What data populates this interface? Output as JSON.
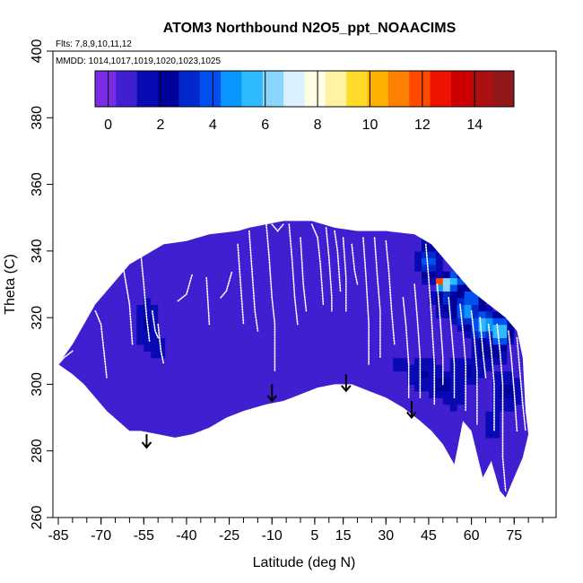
{
  "chart_data": {
    "type": "heatmap",
    "title": "ATOM3 Northbound N2O5_ppt_NOAACIMS",
    "subtitle_flights": "Flts: 7,8,9,10,11,12",
    "subtitle_dates": "MMDD: 1014,1017,1019,1020,1023,1025",
    "xlabel": "Latitude (deg N)",
    "ylabel": "Theta (C)",
    "xlim": [
      -85,
      85
    ],
    "ylim": [
      260,
      400
    ],
    "x_ticks": [
      -85,
      -70,
      -55,
      -40,
      -25,
      -10,
      5,
      15,
      30,
      45,
      60,
      75
    ],
    "x_minor_step": 5,
    "y_ticks": [
      260,
      280,
      300,
      320,
      340,
      360,
      380,
      400
    ],
    "colorbar": {
      "range": [
        -0.5,
        15.5
      ],
      "ticks": [
        0,
        2,
        4,
        6,
        8,
        10,
        12,
        14
      ],
      "colors": [
        "#7b2be6",
        "#3f1fd0",
        "#0a0ab4",
        "#00009a",
        "#0028cc",
        "#0050f0",
        "#0a96ff",
        "#2dbaff",
        "#8ad6ff",
        "#daf0ff",
        "#ffffe6",
        "#fff2a0",
        "#ffdc2a",
        "#ffb000",
        "#ff8000",
        "#ff4a00",
        "#ee1200",
        "#cc0000",
        "#aa1010",
        "#901818"
      ]
    },
    "field_curtain": {
      "description": "interpolated N2O5 (ppt) curtain in latitude-theta space",
      "background_value": 0.3,
      "outline_upper": [
        [
          -85,
          306
        ],
        [
          -80,
          312
        ],
        [
          -76,
          318
        ],
        [
          -72,
          324
        ],
        [
          -66,
          330
        ],
        [
          -60,
          336
        ],
        [
          -56,
          338
        ],
        [
          -52,
          340
        ],
        [
          -48,
          342
        ],
        [
          -40,
          343
        ],
        [
          -32,
          345
        ],
        [
          -22,
          346
        ],
        [
          -18,
          347
        ],
        [
          -12,
          348
        ],
        [
          -6,
          349
        ],
        [
          4,
          349
        ],
        [
          12,
          347
        ],
        [
          20,
          346
        ],
        [
          30,
          346
        ],
        [
          40,
          345
        ],
        [
          46,
          342
        ],
        [
          50,
          338
        ],
        [
          56,
          332
        ],
        [
          60,
          328
        ],
        [
          66,
          324
        ],
        [
          72,
          320
        ],
        [
          76,
          316
        ],
        [
          78,
          308
        ],
        [
          79,
          292
        ],
        [
          80,
          285
        ]
      ],
      "outline_lower": [
        [
          80,
          285
        ],
        [
          78,
          278
        ],
        [
          75,
          272
        ],
        [
          72,
          266
        ],
        [
          70,
          268
        ],
        [
          67,
          277
        ],
        [
          64,
          272
        ],
        [
          60,
          286
        ],
        [
          57,
          289
        ],
        [
          54,
          276
        ],
        [
          50,
          282
        ],
        [
          46,
          286
        ],
        [
          42,
          289
        ],
        [
          36,
          293
        ],
        [
          30,
          296
        ],
        [
          24,
          298
        ],
        [
          18,
          300
        ],
        [
          12,
          300
        ],
        [
          6,
          299
        ],
        [
          0,
          297
        ],
        [
          -6,
          295
        ],
        [
          -12,
          294
        ],
        [
          -20,
          292
        ],
        [
          -26,
          290
        ],
        [
          -32,
          287
        ],
        [
          -38,
          285
        ],
        [
          -44,
          284
        ],
        [
          -50,
          285
        ],
        [
          -56,
          286
        ],
        [
          -60,
          286
        ],
        [
          -64,
          289
        ],
        [
          -68,
          292
        ],
        [
          -72,
          296
        ],
        [
          -76,
          300
        ],
        [
          -80,
          303
        ],
        [
          -85,
          306
        ]
      ],
      "features": [
        {
          "lat": -54,
          "theta": 318,
          "value": 2.0,
          "dlat": 6,
          "dtheta": 10
        },
        {
          "lat": -50,
          "theta": 311,
          "value": 1.8,
          "dlat": 5,
          "dtheta": 5
        },
        {
          "lat": -57,
          "theta": 322,
          "value": 1.0,
          "dlat": 4,
          "dtheta": 8
        },
        {
          "lat": -68,
          "theta": 300,
          "value": 0.6,
          "dlat": 8,
          "dtheta": 6
        },
        {
          "lat": 35,
          "theta": 306,
          "value": 1.2,
          "dlat": 14,
          "dtheta": 8
        },
        {
          "lat": 44,
          "theta": 303,
          "value": 2.0,
          "dlat": 8,
          "dtheta": 6
        },
        {
          "lat": 50,
          "theta": 300,
          "value": 2.4,
          "dlat": 6,
          "dtheta": 5
        },
        {
          "lat": 54,
          "theta": 297,
          "value": 1.8,
          "dlat": 6,
          "dtheta": 6
        },
        {
          "lat": 58,
          "theta": 304,
          "value": 2.0,
          "dlat": 8,
          "dtheta": 6
        },
        {
          "lat": 66,
          "theta": 310,
          "value": 2.4,
          "dlat": 8,
          "dtheta": 6
        },
        {
          "lat": 72,
          "theta": 298,
          "value": 2.2,
          "dlat": 6,
          "dtheta": 8
        },
        {
          "lat": 68,
          "theta": 288,
          "value": 1.6,
          "dlat": 5,
          "dtheta": 6
        },
        {
          "lat": 52,
          "theta": 326,
          "value": 3.0,
          "dlat": 6,
          "dtheta": 6
        },
        {
          "lat": 58,
          "theta": 322,
          "value": 5.0,
          "dlat": 5,
          "dtheta": 5
        },
        {
          "lat": 64,
          "theta": 318,
          "value": 5.5,
          "dlat": 6,
          "dtheta": 5
        },
        {
          "lat": 70,
          "theta": 316,
          "value": 6.0,
          "dlat": 4,
          "dtheta": 5
        },
        {
          "lat": 45,
          "theta": 337,
          "value": 4.0,
          "dlat": 4,
          "dtheta": 6
        },
        {
          "lat": 54,
          "theta": 331,
          "value": 5.5,
          "dlat": 4,
          "dtheta": 3
        },
        {
          "lat": 60,
          "theta": 326,
          "value": 4.0,
          "dlat": 5,
          "dtheta": 4
        },
        {
          "lat": 49,
          "theta": 331,
          "value": 12.0,
          "dlat": 1.4,
          "dtheta": 1.4
        },
        {
          "lat": 51,
          "theta": 330,
          "value": 14.0,
          "dlat": 1.2,
          "dtheta": 1.2
        },
        {
          "lat": 50,
          "theta": 328.5,
          "value": 10.0,
          "dlat": 1.6,
          "dtheta": 1.6
        },
        {
          "lat": 26,
          "theta": 302,
          "value": 0.8,
          "dlat": 10,
          "dtheta": 6
        }
      ]
    },
    "flight_tracks": {
      "description": "sampled flight profiles (white dotted traces), each as latitude-theta vertices",
      "tracks": [
        [
          [
            -85,
            306
          ],
          [
            -83,
            308
          ],
          [
            -80,
            310
          ]
        ],
        [
          [
            -72,
            322
          ],
          [
            -70,
            318
          ],
          [
            -69,
            310
          ],
          [
            -68,
            302
          ]
        ],
        [
          [
            -62,
            334
          ],
          [
            -60,
            324
          ],
          [
            -59,
            312
          ]
        ],
        [
          [
            -56,
            339
          ],
          [
            -55,
            330
          ],
          [
            -54,
            320
          ],
          [
            -53,
            313
          ]
        ],
        [
          [
            -52,
            322
          ],
          [
            -51,
            316
          ],
          [
            -50,
            314
          ]
        ],
        [
          [
            -50,
            318
          ],
          [
            -49,
            310
          ],
          [
            -48,
            306
          ]
        ],
        [
          [
            -43,
            325
          ],
          [
            -40,
            327
          ],
          [
            -38,
            333
          ]
        ],
        [
          [
            -33,
            332
          ],
          [
            -32,
            318
          ]
        ],
        [
          [
            -28,
            326
          ],
          [
            -26,
            328
          ],
          [
            -24,
            334
          ]
        ],
        [
          [
            -22,
            342
          ],
          [
            -21,
            330
          ],
          [
            -20,
            318
          ]
        ],
        [
          [
            -18,
            346
          ],
          [
            -17,
            334
          ],
          [
            -16,
            322
          ],
          [
            -15,
            316
          ]
        ],
        [
          [
            -12,
            348
          ],
          [
            -11,
            338
          ],
          [
            -10,
            326
          ],
          [
            -9,
            318
          ],
          [
            -9,
            304
          ]
        ],
        [
          [
            -10,
            348
          ],
          [
            -8,
            346
          ],
          [
            -6,
            348
          ]
        ],
        [
          [
            -4,
            348
          ],
          [
            -3,
            338
          ],
          [
            -2,
            326
          ],
          [
            -1,
            318
          ]
        ],
        [
          [
            0,
            344
          ],
          [
            1,
            330
          ],
          [
            2,
            322
          ]
        ],
        [
          [
            4,
            348
          ],
          [
            6,
            344
          ],
          [
            7,
            336
          ],
          [
            8,
            324
          ]
        ],
        [
          [
            9,
            347
          ],
          [
            10,
            338
          ],
          [
            11,
            326
          ],
          [
            11,
            322
          ]
        ],
        [
          [
            12,
            346
          ],
          [
            13,
            340
          ],
          [
            14,
            328
          ]
        ],
        [
          [
            15,
            344
          ],
          [
            16,
            332
          ],
          [
            16,
            322
          ]
        ],
        [
          [
            18,
            342
          ],
          [
            19,
            334
          ],
          [
            20,
            330
          ]
        ],
        [
          [
            22,
            344
          ],
          [
            23,
            332
          ],
          [
            24,
            318
          ],
          [
            24,
            306
          ]
        ],
        [
          [
            26,
            344
          ],
          [
            27,
            332
          ],
          [
            28,
            322
          ],
          [
            28,
            308
          ]
        ],
        [
          [
            30,
            343
          ],
          [
            31,
            334
          ],
          [
            32,
            322
          ],
          [
            33,
            312
          ]
        ],
        [
          [
            36,
            326
          ],
          [
            37,
            318
          ],
          [
            38,
            306
          ],
          [
            38,
            296
          ]
        ],
        [
          [
            40,
            330
          ],
          [
            41,
            320
          ],
          [
            42,
            308
          ],
          [
            42,
            296
          ]
        ],
        [
          [
            44,
            342
          ],
          [
            45,
            332
          ],
          [
            46,
            320
          ],
          [
            47,
            306
          ],
          [
            47,
            294
          ]
        ],
        [
          [
            48,
            330
          ],
          [
            49,
            320
          ],
          [
            50,
            308
          ],
          [
            50,
            300
          ]
        ],
        [
          [
            52,
            326
          ],
          [
            53,
            316
          ],
          [
            54,
            306
          ],
          [
            54,
            296
          ]
        ],
        [
          [
            56,
            324
          ],
          [
            57,
            316
          ],
          [
            58,
            306
          ],
          [
            58,
            292
          ]
        ],
        [
          [
            60,
            322
          ],
          [
            61,
            314
          ],
          [
            62,
            304
          ],
          [
            62,
            288
          ]
        ],
        [
          [
            63,
            320
          ],
          [
            64,
            310
          ],
          [
            65,
            302
          ]
        ],
        [
          [
            66,
            318
          ],
          [
            67,
            310
          ],
          [
            68,
            300
          ],
          [
            68,
            286
          ]
        ],
        [
          [
            69,
            318
          ],
          [
            70,
            310
          ],
          [
            71,
            300
          ],
          [
            71,
            278
          ],
          [
            72,
            268
          ]
        ],
        [
          [
            73,
            316
          ],
          [
            74,
            308
          ],
          [
            75,
            298
          ],
          [
            76,
            286
          ]
        ],
        [
          [
            76,
            314
          ],
          [
            77,
            304
          ],
          [
            78,
            294
          ],
          [
            79,
            286
          ]
        ]
      ]
    },
    "arrows": [
      {
        "lat": -54,
        "theta_start": 285,
        "theta_end": 281
      },
      {
        "lat": -10,
        "theta_start": 300,
        "theta_end": 295
      },
      {
        "lat": 16,
        "theta_start": 303,
        "theta_end": 298
      },
      {
        "lat": 39,
        "theta_start": 295,
        "theta_end": 290
      }
    ]
  },
  "colors": {
    "axis": "#000000",
    "track": "#ffffff",
    "arrow": "#000000"
  }
}
